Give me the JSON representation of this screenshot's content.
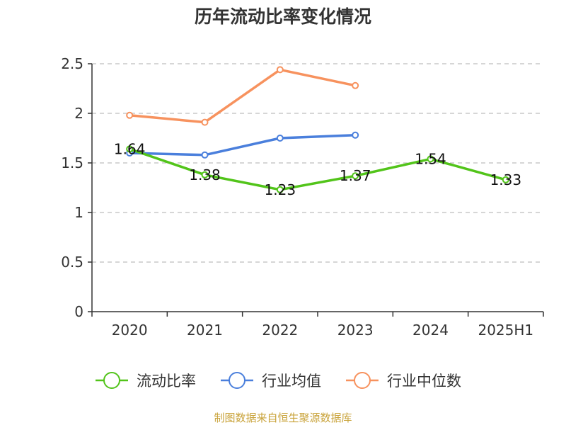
{
  "chart_data": {
    "type": "line",
    "title": "历年流动比率变化情况",
    "categories": [
      "2020",
      "2021",
      "2022",
      "2023",
      "2024",
      "2025H1"
    ],
    "ylim": [
      0,
      2.5
    ],
    "yticks": [
      "0",
      "0.5",
      "1",
      "1.5",
      "2",
      "2.5"
    ],
    "grid": true,
    "legend_position": "bottom",
    "series": [
      {
        "name": "流动比率",
        "color": "#52c41a",
        "values": [
          1.64,
          1.38,
          1.23,
          1.37,
          1.54,
          1.33
        ],
        "labels": [
          "1.64",
          "1.38",
          "1.23",
          "1.37",
          "1.54",
          "1.33"
        ]
      },
      {
        "name": "行业均值",
        "color": "#4a7fdc",
        "values": [
          1.6,
          1.58,
          1.75,
          1.78,
          null,
          null
        ]
      },
      {
        "name": "行业中位数",
        "color": "#f7925e",
        "values": [
          1.98,
          1.91,
          2.44,
          2.28,
          null,
          null
        ]
      }
    ]
  },
  "source": "制图数据来自恒生聚源数据库"
}
